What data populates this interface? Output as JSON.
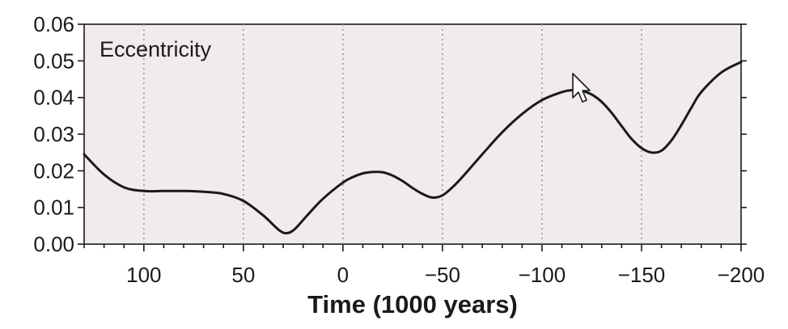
{
  "chart_data": {
    "type": "line",
    "xlabel": "Time (1000 years)",
    "ylabel": "",
    "xlim": [
      130,
      -200
    ],
    "ylim": [
      0,
      0.06
    ],
    "x_ticks": [
      100,
      50,
      0,
      -50,
      -100,
      -150,
      -200
    ],
    "x_tick_labels": [
      "100",
      "50",
      "0",
      "−50",
      "−100",
      "−150",
      "−200"
    ],
    "y_ticks": [
      0,
      0.01,
      0.02,
      0.03,
      0.04,
      0.05,
      0.06
    ],
    "y_tick_labels": [
      "0.00",
      "0.01",
      "0.02",
      "0.03",
      "0.04",
      "0.05",
      "0.06"
    ],
    "grid": "vertical dotted lines at x ticks",
    "series": [
      {
        "name": "Eccentricity",
        "color": "#1a1a1a",
        "x": [
          130,
          120,
          110,
          100,
          90,
          80,
          70,
          60,
          50,
          40,
          32,
          28,
          24,
          18,
          10,
          0,
          -5,
          -10,
          -15,
          -20,
          -25,
          -30,
          -35,
          -40,
          -45,
          -50,
          -55,
          -60,
          -70,
          -80,
          -90,
          -100,
          -110,
          -115,
          -120,
          -125,
          -130,
          -135,
          -140,
          -145,
          -150,
          -155,
          -160,
          -165,
          -170,
          -175,
          -180,
          -190,
          -200
        ],
        "y": [
          0.0245,
          0.019,
          0.0155,
          0.0145,
          0.0145,
          0.0145,
          0.0143,
          0.0137,
          0.0118,
          0.0078,
          0.0038,
          0.003,
          0.0042,
          0.0078,
          0.0124,
          0.0168,
          0.0183,
          0.0193,
          0.0197,
          0.0196,
          0.0187,
          0.0172,
          0.0153,
          0.0137,
          0.0127,
          0.0133,
          0.0155,
          0.0183,
          0.0245,
          0.0305,
          0.0355,
          0.0393,
          0.0415,
          0.042,
          0.0418,
          0.0408,
          0.0388,
          0.0358,
          0.0322,
          0.0287,
          0.0262,
          0.025,
          0.0255,
          0.0283,
          0.0325,
          0.0372,
          0.0415,
          0.0468,
          0.0497
        ]
      }
    ]
  }
}
